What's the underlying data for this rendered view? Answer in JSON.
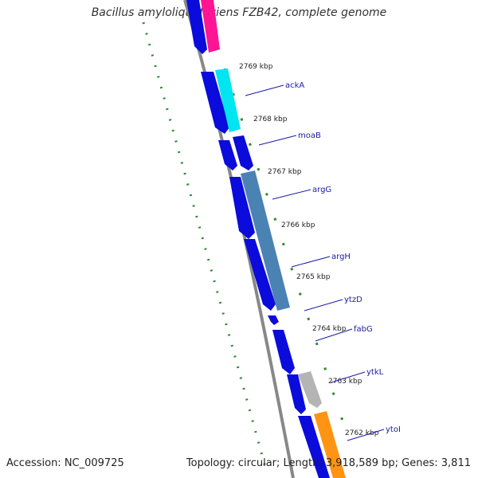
{
  "title": "Bacillus amyloliquefaciens FZB42, complete genome",
  "footer": {
    "accession": "Accession: NC_009725",
    "summary": "Topology: circular; Length: 3,918,589 bp; Genes: 3,811"
  },
  "ruler_labels": [
    "2769 kbp",
    "2768 kbp",
    "2767 kbp",
    "2766 kbp",
    "2765 kbp",
    "2764 kbp",
    "2763 kbp",
    "2762 kbp"
  ],
  "genes": [
    {
      "name": "ackA"
    },
    {
      "name": "moaB"
    },
    {
      "name": "argG"
    },
    {
      "name": "argH"
    },
    {
      "name": "ytzD"
    },
    {
      "name": "fabG"
    },
    {
      "name": "ytkL"
    },
    {
      "name": "ytoI"
    }
  ],
  "colors": {
    "backbone": "#888888",
    "cds_blue": "#0b0bdb",
    "pink": "#ff1493",
    "cyan": "#00e5f0",
    "steelblue": "#4a82b4",
    "gray": "#b4b4b4",
    "orange": "#ff9412",
    "green_ticks": "#2e8b2e",
    "label_line": "#1a1aa8"
  }
}
